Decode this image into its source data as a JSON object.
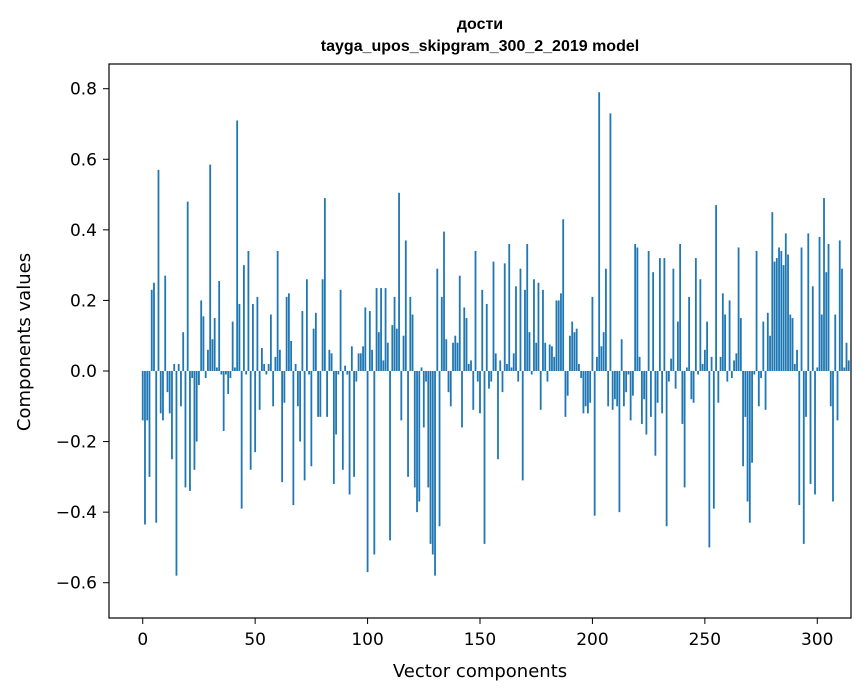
{
  "chart_data": {
    "type": "bar",
    "title": "дости",
    "subtitle": "tayga_upos_skipgram_300_2_2019 model",
    "xlabel": "Vector components",
    "ylabel": "Components values",
    "xlim": [
      -15,
      315
    ],
    "ylim": [
      -0.7,
      0.87
    ],
    "xticks": [
      0,
      50,
      100,
      150,
      200,
      250,
      300
    ],
    "xtick_labels": [
      "0",
      "50",
      "100",
      "150",
      "200",
      "250",
      "300"
    ],
    "yticks": [
      -0.6,
      -0.4,
      -0.2,
      0.0,
      0.2,
      0.4,
      0.6,
      0.8
    ],
    "ytick_labels": [
      "−0.6",
      "−0.4",
      "−0.2",
      "0.0",
      "0.2",
      "0.4",
      "0.6",
      "0.8"
    ],
    "bar_color": "#1f77b4",
    "grid": false,
    "values": [
      -0.14,
      -0.435,
      -0.14,
      -0.3,
      0.23,
      0.25,
      -0.43,
      0.57,
      -0.12,
      -0.14,
      0.27,
      -0.06,
      -0.12,
      -0.25,
      0.02,
      -0.58,
      0.02,
      -0.1,
      0.11,
      -0.33,
      0.48,
      -0.34,
      -0.02,
      -0.28,
      -0.2,
      -0.04,
      0.2,
      0.155,
      -0.02,
      0.06,
      0.585,
      0.09,
      0.15,
      0.01,
      0.255,
      -0.01,
      -0.17,
      -0.01,
      -0.065,
      -0.02,
      0.14,
      0.01,
      0.71,
      0.19,
      -0.39,
      0.3,
      -0.01,
      0.34,
      -0.28,
      0.19,
      -0.23,
      0.21,
      -0.11,
      0.065,
      0.02,
      -0.01,
      0.02,
      0.16,
      -0.1,
      0.04,
      0.34,
      0.06,
      -0.315,
      -0.09,
      0.21,
      0.22,
      0.085,
      -0.38,
      0.02,
      -0.1,
      -0.2,
      0.17,
      -0.31,
      0.26,
      -0.01,
      -0.27,
      0.12,
      0.165,
      -0.13,
      -0.13,
      0.26,
      0.49,
      -0.13,
      0.06,
      0.05,
      -0.32,
      -0.18,
      -0.01,
      0.23,
      -0.28,
      0.015,
      -0.01,
      -0.35,
      0.07,
      -0.3,
      -0.03,
      0.05,
      0.05,
      0.07,
      0.18,
      -0.57,
      0.17,
      0.06,
      -0.52,
      0.235,
      0.11,
      0.235,
      0.03,
      0.235,
      0.08,
      -0.48,
      0.13,
      0.21,
      0.12,
      0.505,
      -0.14,
      0.1,
      0.37,
      -0.3,
      0.21,
      0.16,
      -0.33,
      -0.4,
      -0.37,
      0.01,
      -0.16,
      -0.03,
      -0.33,
      -0.49,
      -0.52,
      -0.58,
      0.29,
      -0.44,
      0.21,
      0.395,
      0.09,
      -0.06,
      -0.1,
      0.08,
      0.1,
      0.08,
      0.27,
      -0.16,
      0.18,
      0.15,
      0.02,
      0.03,
      -0.11,
      0.34,
      -0.03,
      -0.12,
      0.23,
      -0.49,
      0.19,
      -0.05,
      -0.03,
      0.31,
      0.05,
      -0.25,
      0.03,
      -0.06,
      0.305,
      0.02,
      0.36,
      0.01,
      0.05,
      0.24,
      -0.03,
      0.29,
      -0.31,
      0.23,
      0.36,
      0.11,
      -0.01,
      0.26,
      0.08,
      0.25,
      -0.11,
      0.23,
      0.08,
      -0.03,
      0.075,
      0.07,
      0.04,
      0.2,
      0.2,
      0.22,
      0.43,
      -0.13,
      -0.07,
      0.1,
      0.14,
      0.11,
      0.12,
      0.02,
      -0.02,
      -0.12,
      -0.1,
      -0.12,
      -0.09,
      0.21,
      -0.41,
      0.04,
      0.79,
      0.07,
      0.11,
      0.29,
      -0.1,
      0.73,
      -0.11,
      -0.08,
      -0.1,
      -0.4,
      0.09,
      -0.1,
      -0.06,
      -0.01,
      -0.14,
      -0.07,
      0.36,
      0.35,
      0.04,
      -0.15,
      -0.08,
      -0.18,
      0.34,
      -0.13,
      0.28,
      -0.24,
      -0.09,
      0.32,
      -0.12,
      0.32,
      -0.44,
      -0.03,
      0.035,
      0.29,
      -0.05,
      0.14,
      0.36,
      -0.15,
      -0.33,
      0.01,
      0.21,
      -0.08,
      -0.09,
      0.32,
      -0.01,
      0.26,
      0.02,
      0.06,
      0.14,
      -0.5,
      0.04,
      -0.39,
      0.47,
      -0.09,
      0.04,
      0.22,
      0.16,
      -0.03,
      0.2,
      -0.02,
      0.03,
      0.05,
      0.35,
      0.15,
      -0.27,
      -0.13,
      -0.37,
      -0.43,
      -0.26,
      -0.01,
      0.34,
      -0.1,
      -0.02,
      0.14,
      -0.11,
      0.165,
      0.1,
      0.45,
      0.31,
      0.32,
      0.35,
      0.34,
      0.3,
      0.39,
      0.33,
      0.16,
      0.15,
      0.02,
      0.06,
      -0.38,
      0.35,
      -0.49,
      -0.13,
      0.39,
      -0.32,
      0.24,
      -0.35,
      0.01,
      0.38,
      0.16,
      0.49,
      0.28,
      0.36,
      -0.1,
      -0.37,
      0.16,
      -0.14,
      0.37,
      0.29,
      0.01,
      0.08,
      0.03
    ]
  }
}
